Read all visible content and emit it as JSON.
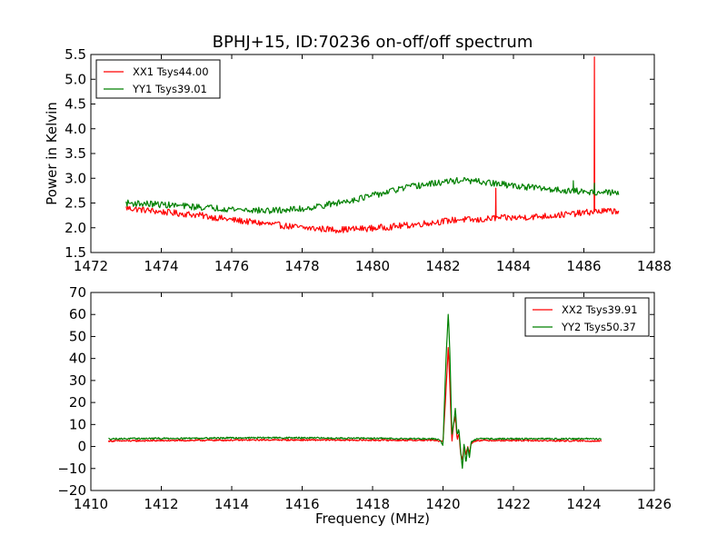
{
  "chart_data": [
    {
      "type": "line",
      "title": "BPHJ+15, ID:70236 on-off/off spectrum",
      "xlabel": "",
      "ylabel": "Power in Kelvin",
      "xlim": [
        1472,
        1488
      ],
      "ylim": [
        1.5,
        5.5
      ],
      "xticks": [
        "1472",
        "1474",
        "1476",
        "1478",
        "1480",
        "1482",
        "1484",
        "1486",
        "1488"
      ],
      "yticks": [
        "1.5",
        "2.0",
        "2.5",
        "3.0",
        "3.5",
        "4.0",
        "4.5",
        "5.0",
        "5.5"
      ],
      "legend_position": "top-left",
      "grid": false,
      "series": [
        {
          "name": "XX1 Tsys44.00",
          "color": "#ff0000",
          "x": [
            1473.0,
            1474.0,
            1475.0,
            1476.0,
            1477.0,
            1478.0,
            1479.0,
            1480.0,
            1481.0,
            1482.0,
            1482.5,
            1483.0,
            1483.5,
            1484.0,
            1485.0,
            1486.0,
            1486.3,
            1487.0
          ],
          "y": [
            2.4,
            2.32,
            2.26,
            2.16,
            2.08,
            2.0,
            1.96,
            1.99,
            2.05,
            2.13,
            2.17,
            2.15,
            2.2,
            2.2,
            2.24,
            2.3,
            2.33,
            2.34
          ],
          "spikes": [
            [
              1483.5,
              2.8
            ],
            [
              1486.3,
              5.45
            ]
          ]
        },
        {
          "name": "YY1 Tsys39.01",
          "color": "#008000",
          "x": [
            1473.0,
            1474.0,
            1475.0,
            1476.0,
            1477.0,
            1478.0,
            1479.0,
            1480.0,
            1481.0,
            1482.0,
            1482.5,
            1483.0,
            1484.0,
            1485.0,
            1486.0,
            1487.0
          ],
          "y": [
            2.5,
            2.47,
            2.42,
            2.38,
            2.34,
            2.38,
            2.5,
            2.65,
            2.82,
            2.92,
            2.96,
            2.93,
            2.85,
            2.78,
            2.73,
            2.7
          ],
          "spikes": [
            [
              1485.7,
              2.95
            ],
            [
              1486.3,
              2.9
            ]
          ]
        }
      ]
    },
    {
      "type": "line",
      "title": "",
      "xlabel": "Frequency (MHz)",
      "ylabel": "",
      "xlim": [
        1410,
        1426
      ],
      "ylim": [
        -20,
        70
      ],
      "xticks": [
        "1410",
        "1412",
        "1414",
        "1416",
        "1418",
        "1420",
        "1422",
        "1424",
        "1426"
      ],
      "yticks": [
        "−20",
        "−10",
        "0",
        "10",
        "20",
        "30",
        "40",
        "50",
        "60",
        "70"
      ],
      "legend_position": "top-right",
      "grid": false,
      "series": [
        {
          "name": "XX2 Tsys39.91",
          "color": "#ff0000",
          "x": [
            1410.5,
            1415.0,
            1419.8,
            1419.9,
            1420.0,
            1420.1,
            1420.15,
            1420.2,
            1420.25,
            1420.3,
            1420.35,
            1420.4,
            1420.45,
            1420.5,
            1420.55,
            1420.6,
            1420.65,
            1420.7,
            1420.75,
            1420.8,
            1420.85,
            1420.9,
            1421.0,
            1424.5
          ],
          "y": [
            2.5,
            3.0,
            2.8,
            2.5,
            2.0,
            30.0,
            46.0,
            25.0,
            2.0,
            10.0,
            14.0,
            3.0,
            6.0,
            -3.0,
            -6.0,
            1.0,
            -4.0,
            0.0,
            -3.0,
            1.5,
            2.0,
            2.5,
            2.8,
            2.5
          ]
        },
        {
          "name": "YY2 Tsys50.37",
          "color": "#008000",
          "x": [
            1410.5,
            1415.0,
            1419.8,
            1419.9,
            1420.0,
            1420.05,
            1420.1,
            1420.15,
            1420.2,
            1420.25,
            1420.3,
            1420.35,
            1420.4,
            1420.45,
            1420.5,
            1420.55,
            1420.6,
            1420.65,
            1420.7,
            1420.75,
            1420.8,
            1420.85,
            1420.9,
            1421.0,
            1424.5
          ],
          "y": [
            3.5,
            4.0,
            3.5,
            3.2,
            0.5,
            25.0,
            45.0,
            61.0,
            40.0,
            5.0,
            10.0,
            17.5,
            5.0,
            8.0,
            -2.0,
            -10.0,
            2.0,
            -8.0,
            0.0,
            -5.0,
            2.0,
            2.5,
            3.0,
            3.5,
            3.5
          ]
        }
      ]
    }
  ]
}
